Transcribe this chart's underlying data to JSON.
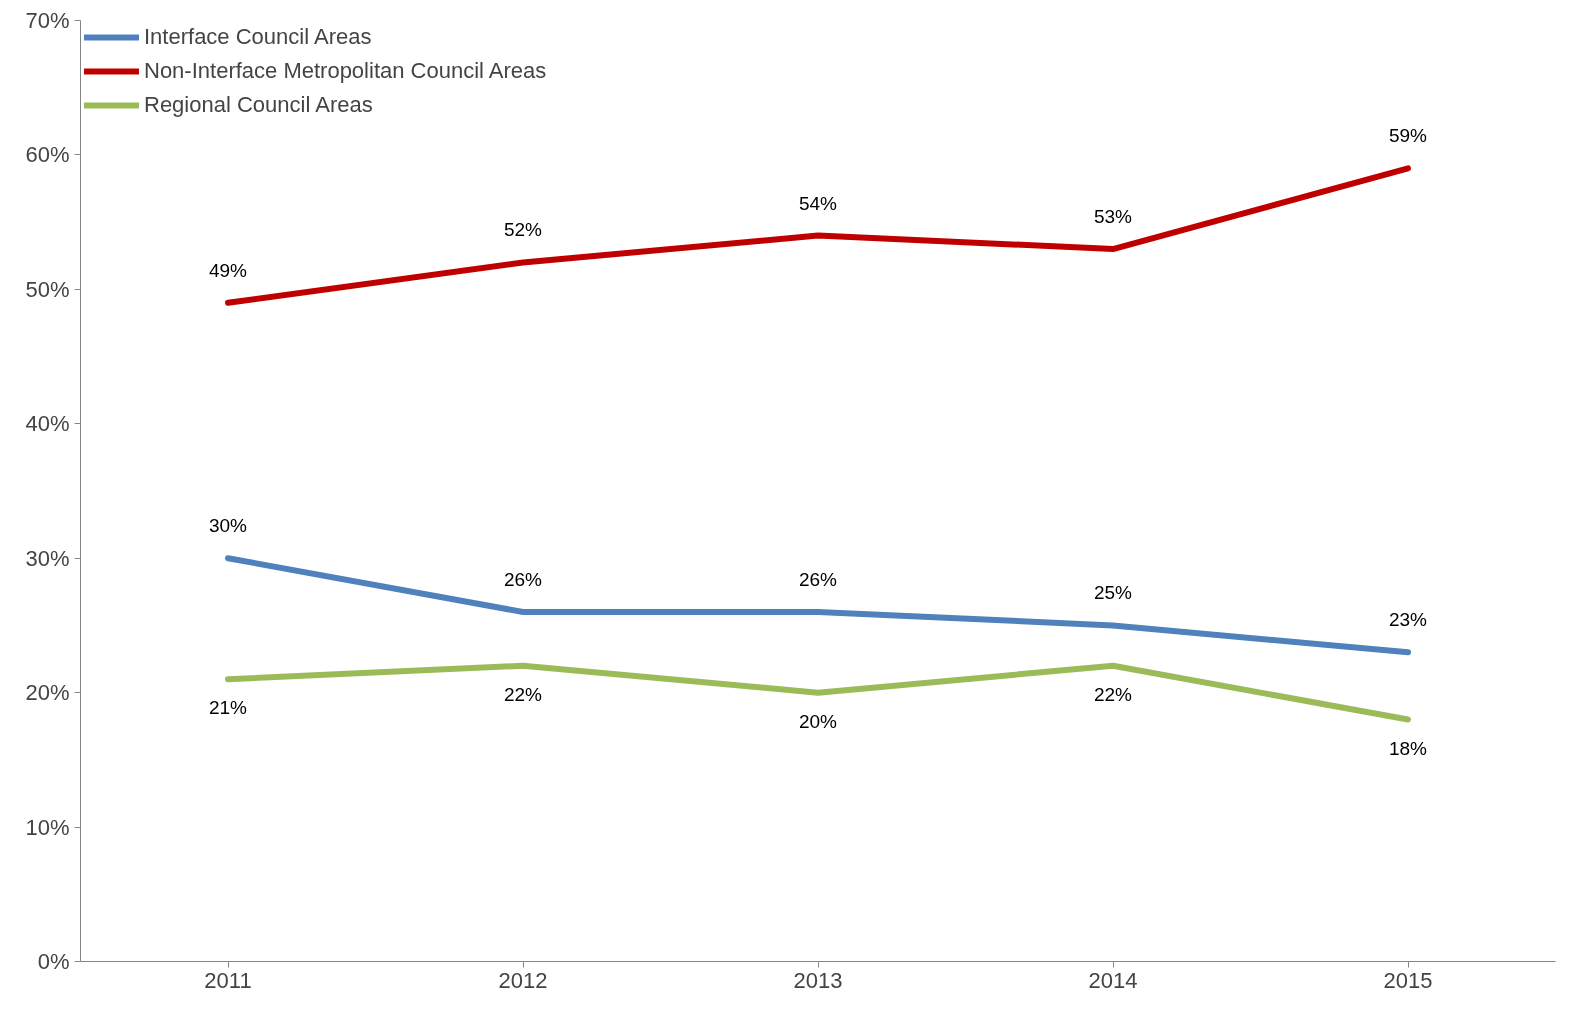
{
  "chart_data": {
    "type": "line",
    "categories": [
      "2011",
      "2012",
      "2013",
      "2014",
      "2015"
    ],
    "series": [
      {
        "name": "Interface Council Areas",
        "color": "#4f81bd",
        "values": [
          30,
          26,
          26,
          25,
          23
        ],
        "value_labels": [
          "30%",
          "26%",
          "26%",
          "25%",
          "23%"
        ]
      },
      {
        "name": "Non-Interface Metropolitan Council Areas",
        "color": "#c00000",
        "values": [
          49,
          52,
          54,
          53,
          59
        ],
        "value_labels": [
          "49%",
          "52%",
          "54%",
          "53%",
          "59%"
        ]
      },
      {
        "name": "Regional Council Areas",
        "color": "#9bbb59",
        "values": [
          21,
          22,
          20,
          22,
          18
        ],
        "value_labels": [
          "21%",
          "22%",
          "20%",
          "22%",
          "18%"
        ]
      }
    ],
    "ylim": [
      0,
      70
    ],
    "yticks": [
      {
        "value": 0,
        "label": "0%"
      },
      {
        "value": 10,
        "label": "10%"
      },
      {
        "value": 20,
        "label": "20%"
      },
      {
        "value": 30,
        "label": "30%"
      },
      {
        "value": 40,
        "label": "40%"
      },
      {
        "value": 50,
        "label": "50%"
      },
      {
        "value": 60,
        "label": "60%"
      },
      {
        "value": 70,
        "label": "70%"
      }
    ],
    "legend": "top left",
    "grid": false,
    "marker": "none",
    "line_style": "solid"
  }
}
